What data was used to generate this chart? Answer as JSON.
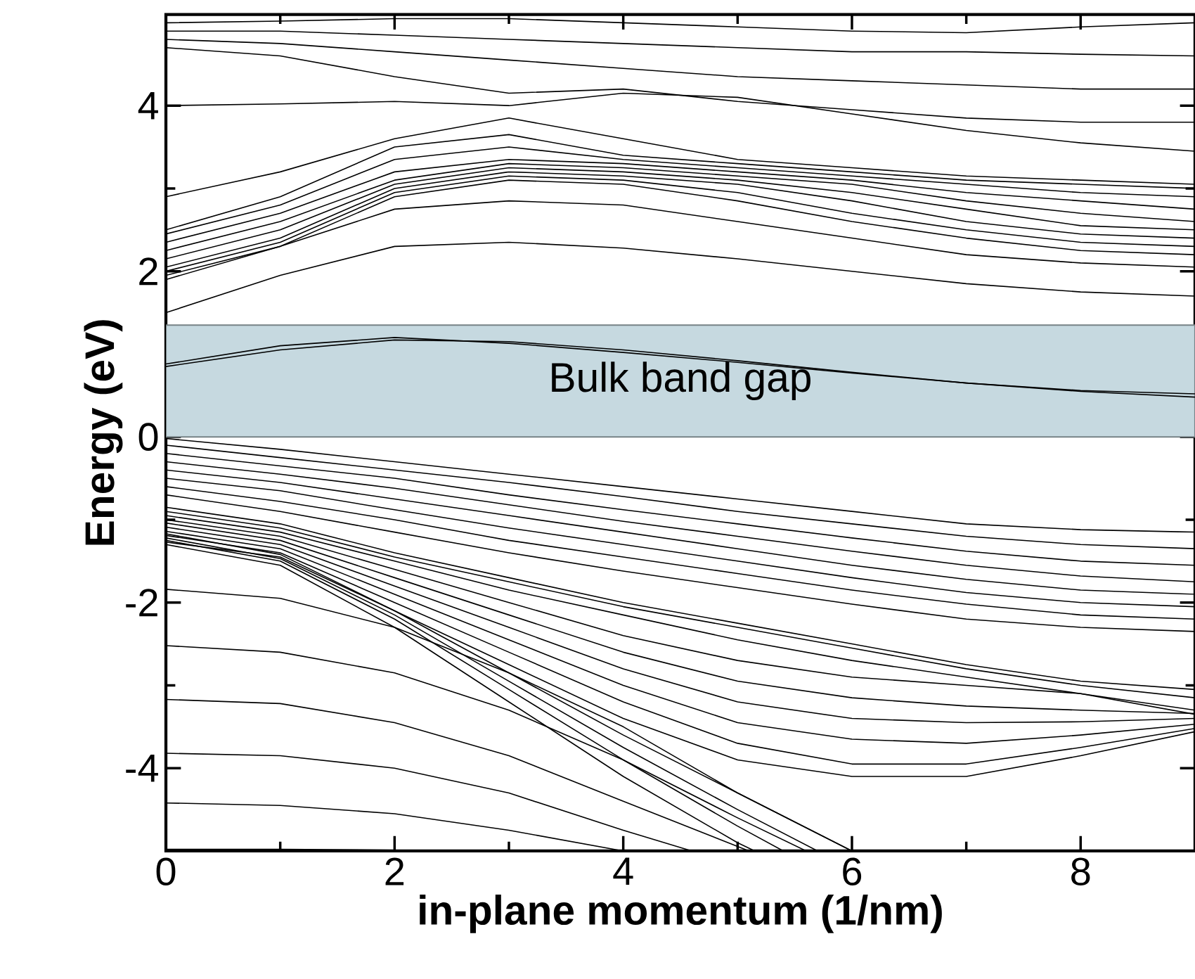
{
  "chart_data": {
    "type": "line",
    "xlabel": "in-plane momentum (1/nm)",
    "ylabel": "Energy (eV)",
    "x": [
      0,
      1,
      2,
      3,
      4,
      5,
      6,
      7,
      8,
      9
    ],
    "xlim": [
      0,
      9
    ],
    "ylim": [
      -5,
      5.1
    ],
    "xticks": [
      0,
      2,
      4,
      6,
      8
    ],
    "yticks": [
      -4,
      -2,
      0,
      2,
      4
    ],
    "grid": false,
    "marker": "none",
    "line_style": "solid",
    "bands": [
      {
        "axis": "y",
        "from": 0,
        "to": 1.35,
        "label": "Bulk band gap",
        "color": "#c6d9e0"
      }
    ],
    "series": [
      {
        "color": "#000000",
        "values": [
          0.85,
          1.05,
          1.17,
          1.15,
          1.05,
          0.92,
          0.78,
          0.65,
          0.55,
          0.48
        ]
      },
      {
        "color": "#000000",
        "values": [
          0.88,
          1.1,
          1.2,
          1.13,
          1.02,
          0.9,
          0.77,
          0.65,
          0.56,
          0.52
        ]
      },
      {
        "color": "#000000",
        "values": [
          1.5,
          1.95,
          2.3,
          2.35,
          2.28,
          2.15,
          2.0,
          1.85,
          1.75,
          1.7
        ]
      },
      {
        "color": "#000000",
        "values": [
          1.9,
          2.3,
          2.75,
          2.85,
          2.8,
          2.6,
          2.4,
          2.2,
          2.1,
          2.05
        ]
      },
      {
        "color": "#000000",
        "values": [
          1.95,
          2.3,
          2.9,
          3.1,
          3.05,
          2.85,
          2.6,
          2.4,
          2.25,
          2.2
        ]
      },
      {
        "color": "#000000",
        "values": [
          2.0,
          2.35,
          2.95,
          3.15,
          3.1,
          2.95,
          2.7,
          2.5,
          2.35,
          2.3
        ]
      },
      {
        "color": "#000000",
        "values": [
          2.05,
          2.4,
          3.0,
          3.2,
          3.15,
          3.05,
          2.85,
          2.6,
          2.45,
          2.4
        ]
      },
      {
        "color": "#000000",
        "values": [
          2.15,
          2.5,
          3.05,
          3.25,
          3.2,
          3.1,
          2.95,
          2.75,
          2.55,
          2.5
        ]
      },
      {
        "color": "#000000",
        "values": [
          2.25,
          2.6,
          3.1,
          3.3,
          3.25,
          3.15,
          3.05,
          2.85,
          2.7,
          2.6
        ]
      },
      {
        "color": "#000000",
        "values": [
          2.35,
          2.7,
          3.2,
          3.35,
          3.3,
          3.2,
          3.1,
          2.95,
          2.85,
          2.75
        ]
      },
      {
        "color": "#000000",
        "values": [
          2.45,
          2.8,
          3.35,
          3.5,
          3.35,
          3.25,
          3.15,
          3.05,
          2.95,
          2.9
        ]
      },
      {
        "color": "#000000",
        "values": [
          2.5,
          2.9,
          3.5,
          3.65,
          3.4,
          3.3,
          3.2,
          3.1,
          3.05,
          3.0
        ]
      },
      {
        "color": "#000000",
        "values": [
          2.9,
          3.2,
          3.6,
          3.85,
          3.6,
          3.35,
          3.25,
          3.15,
          3.1,
          3.05
        ]
      },
      {
        "color": "#000000",
        "values": [
          4.0,
          4.02,
          4.05,
          4.0,
          4.15,
          4.1,
          3.9,
          3.7,
          3.55,
          3.45
        ]
      },
      {
        "color": "#000000",
        "values": [
          4.7,
          4.6,
          4.35,
          4.15,
          4.2,
          4.05,
          3.95,
          3.85,
          3.8,
          3.8
        ]
      },
      {
        "color": "#000000",
        "values": [
          4.8,
          4.75,
          4.65,
          4.55,
          4.45,
          4.35,
          4.3,
          4.25,
          4.2,
          4.2
        ]
      },
      {
        "color": "#000000",
        "values": [
          4.9,
          4.9,
          4.85,
          4.8,
          4.75,
          4.7,
          4.65,
          4.65,
          4.62,
          4.6
        ]
      },
      {
        "color": "#000000",
        "values": [
          5.0,
          5.02,
          5.05,
          5.05,
          5.0,
          4.95,
          4.9,
          4.88,
          4.95,
          5.0
        ]
      },
      {
        "color": "#000000",
        "values": [
          -0.02,
          -0.15,
          -0.3,
          -0.45,
          -0.6,
          -0.75,
          -0.9,
          -1.05,
          -1.12,
          -1.15
        ]
      },
      {
        "color": "#000000",
        "values": [
          -0.1,
          -0.25,
          -0.4,
          -0.55,
          -0.72,
          -0.9,
          -1.05,
          -1.2,
          -1.3,
          -1.35
        ]
      },
      {
        "color": "#000000",
        "values": [
          -0.2,
          -0.35,
          -0.5,
          -0.7,
          -0.88,
          -1.05,
          -1.22,
          -1.38,
          -1.5,
          -1.55
        ]
      },
      {
        "color": "#000000",
        "values": [
          -0.3,
          -0.45,
          -0.62,
          -0.82,
          -1.02,
          -1.2,
          -1.38,
          -1.55,
          -1.68,
          -1.75
        ]
      },
      {
        "color": "#000000",
        "values": [
          -0.4,
          -0.55,
          -0.75,
          -0.95,
          -1.15,
          -1.35,
          -1.55,
          -1.72,
          -1.85,
          -1.9
        ]
      },
      {
        "color": "#000000",
        "values": [
          -0.5,
          -0.65,
          -0.88,
          -1.1,
          -1.3,
          -1.5,
          -1.7,
          -1.88,
          -2.0,
          -2.05
        ]
      },
      {
        "color": "#000000",
        "values": [
          -0.6,
          -0.78,
          -1.0,
          -1.25,
          -1.45,
          -1.65,
          -1.85,
          -2.02,
          -2.15,
          -2.2
        ]
      },
      {
        "color": "#000000",
        "values": [
          -0.7,
          -0.9,
          -1.15,
          -1.4,
          -1.62,
          -1.82,
          -2.02,
          -2.2,
          -2.3,
          -2.35
        ]
      },
      {
        "color": "#000000",
        "values": [
          -0.85,
          -1.05,
          -1.4,
          -1.7,
          -2.0,
          -2.25,
          -2.5,
          -2.75,
          -2.95,
          -3.05
        ]
      },
      {
        "color": "#000000",
        "values": [
          -0.9,
          -1.1,
          -1.45,
          -1.75,
          -2.05,
          -2.3,
          -2.55,
          -2.8,
          -3.0,
          -3.15
        ]
      },
      {
        "color": "#000000",
        "values": [
          -0.95,
          -1.15,
          -1.5,
          -1.85,
          -2.15,
          -2.45,
          -2.7,
          -2.9,
          -3.1,
          -3.3
        ]
      },
      {
        "color": "#000000",
        "values": [
          -1.0,
          -1.2,
          -1.6,
          -2.0,
          -2.4,
          -2.7,
          -2.9,
          -3.0,
          -3.1,
          -3.35
        ]
      },
      {
        "color": "#000000",
        "values": [
          -1.04,
          -1.25,
          -1.7,
          -2.15,
          -2.6,
          -2.95,
          -3.15,
          -3.25,
          -3.3,
          -3.34
        ]
      },
      {
        "color": "#000000",
        "values": [
          -1.09,
          -1.3,
          -1.8,
          -2.3,
          -2.8,
          -3.2,
          -3.4,
          -3.45,
          -3.44,
          -3.4
        ]
      },
      {
        "color": "#000000",
        "values": [
          -1.14,
          -1.35,
          -1.9,
          -2.45,
          -3.0,
          -3.45,
          -3.65,
          -3.7,
          -3.6,
          -3.47
        ]
      },
      {
        "color": "#000000",
        "values": [
          -1.19,
          -1.4,
          -2.0,
          -2.6,
          -3.2,
          -3.7,
          -3.95,
          -3.95,
          -3.75,
          -3.52
        ]
      },
      {
        "color": "#000000",
        "values": [
          -1.27,
          -1.45,
          -2.1,
          -2.75,
          -3.4,
          -3.9,
          -4.1,
          -4.1,
          -3.85,
          -3.56
        ]
      },
      {
        "color": "#000000",
        "x": [
          0,
          1,
          2,
          3,
          4,
          5,
          6
        ],
        "values": [
          -1.17,
          -1.42,
          -2.1,
          -2.85,
          -3.6,
          -4.3,
          -5.0
        ]
      },
      {
        "color": "#000000",
        "x": [
          0,
          1,
          2,
          3,
          4,
          5,
          5.7
        ],
        "values": [
          -1.22,
          -1.47,
          -2.15,
          -2.95,
          -3.75,
          -4.5,
          -5.0
        ]
      },
      {
        "color": "#000000",
        "x": [
          0,
          1,
          2,
          3,
          4,
          5,
          5.4
        ],
        "values": [
          -1.25,
          -1.5,
          -2.2,
          -3.05,
          -3.9,
          -4.7,
          -5.0
        ]
      },
      {
        "color": "#000000",
        "x": [
          0,
          1,
          2,
          3,
          4,
          5,
          5.15
        ],
        "values": [
          -1.3,
          -1.55,
          -2.3,
          -3.2,
          -4.1,
          -4.9,
          -5.0
        ]
      },
      {
        "color": "#000000",
        "x": [
          0,
          1,
          2,
          3,
          4,
          5,
          6
        ],
        "values": [
          -1.84,
          -1.95,
          -2.3,
          -2.85,
          -3.5,
          -4.3,
          -5.0
        ]
      },
      {
        "color": "#000000",
        "x": [
          0,
          1,
          2,
          3,
          4,
          5,
          5.6
        ],
        "values": [
          -2.52,
          -2.6,
          -2.85,
          -3.3,
          -3.9,
          -4.6,
          -5.0
        ]
      },
      {
        "color": "#000000",
        "x": [
          0,
          1,
          2,
          3,
          4,
          5.1
        ],
        "values": [
          -3.17,
          -3.22,
          -3.45,
          -3.85,
          -4.4,
          -5.0
        ]
      },
      {
        "color": "#000000",
        "x": [
          0,
          1,
          2,
          3,
          4,
          4.6
        ],
        "values": [
          -3.82,
          -3.85,
          -4.0,
          -4.3,
          -4.75,
          -5.0
        ]
      },
      {
        "color": "#000000",
        "x": [
          0,
          1,
          2,
          3,
          4
        ],
        "values": [
          -4.42,
          -4.45,
          -4.55,
          -4.75,
          -5.0
        ]
      },
      {
        "color": "#000000",
        "x": [
          0,
          1,
          2,
          2.6
        ],
        "values": [
          -4.98,
          -4.98,
          -4.99,
          -5.0
        ]
      }
    ]
  }
}
